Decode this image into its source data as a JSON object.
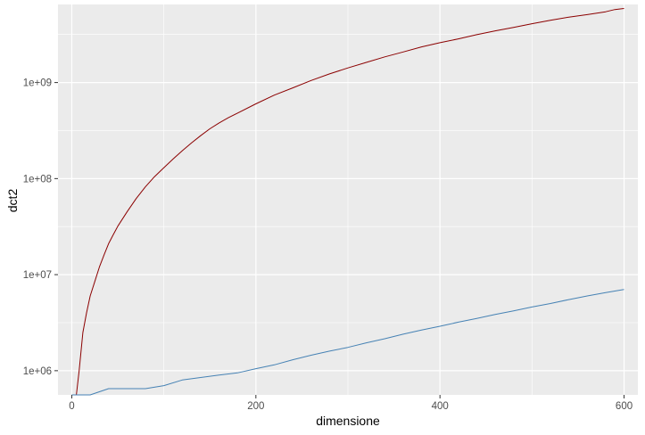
{
  "chart_data": {
    "type": "line",
    "title": "",
    "xlabel": "dimensione",
    "ylabel": "dct2",
    "xlim": [
      -15,
      615
    ],
    "ylim": [
      560000,
      6500000000
    ],
    "log_y": true,
    "grid": true,
    "background": "#ebebeb",
    "x_ticks": [
      {
        "value": 0,
        "label": "0"
      },
      {
        "value": 200,
        "label": "200"
      },
      {
        "value": 400,
        "label": "400"
      },
      {
        "value": 600,
        "label": "600"
      }
    ],
    "y_ticks": [
      {
        "value": 1000000,
        "label": "1e+06"
      },
      {
        "value": 10000000,
        "label": "1e+07"
      },
      {
        "value": 100000000,
        "label": "1e+08"
      },
      {
        "value": 1000000000,
        "label": "1e+09"
      }
    ],
    "series": [
      {
        "color": "#8b0000",
        "x": [
          5,
          8,
          12,
          16,
          20,
          25,
          30,
          35,
          40,
          45,
          50,
          60,
          70,
          80,
          90,
          100,
          110,
          120,
          130,
          140,
          150,
          160,
          170,
          180,
          200,
          220,
          240,
          260,
          280,
          300,
          320,
          340,
          360,
          380,
          400,
          420,
          440,
          460,
          480,
          500,
          520,
          540,
          560,
          580,
          590,
          600
        ],
        "y": [
          560000,
          1000000,
          2500000,
          4000000,
          6000000,
          8500000,
          12000000,
          16000000,
          21000000,
          26000000,
          32000000,
          45000000,
          62000000,
          82000000,
          105000000,
          130000000,
          160000000,
          195000000,
          235000000,
          280000000,
          330000000,
          380000000,
          430000000,
          480000000,
          600000000,
          740000000,
          880000000,
          1050000000,
          1230000000,
          1420000000,
          1620000000,
          1850000000,
          2080000000,
          2350000000,
          2600000000,
          2850000000,
          3150000000,
          3450000000,
          3750000000,
          4100000000,
          4450000000,
          4800000000,
          5100000000,
          5450000000,
          5750000000,
          5900000000
        ]
      },
      {
        "color": "#4682b4",
        "x": [
          0,
          20,
          40,
          60,
          80,
          100,
          120,
          140,
          160,
          180,
          200,
          220,
          240,
          260,
          280,
          300,
          320,
          340,
          360,
          380,
          400,
          420,
          440,
          460,
          480,
          500,
          520,
          540,
          560,
          580,
          600
        ],
        "y": [
          560000,
          560000,
          650000,
          650000,
          650000,
          700000,
          800000,
          850000,
          900000,
          950000,
          1050000,
          1150000,
          1300000,
          1450000,
          1600000,
          1750000,
          1950000,
          2150000,
          2400000,
          2650000,
          2900000,
          3200000,
          3500000,
          3850000,
          4200000,
          4600000,
          5000000,
          5500000,
          6000000,
          6500000,
          7000000
        ]
      }
    ]
  }
}
